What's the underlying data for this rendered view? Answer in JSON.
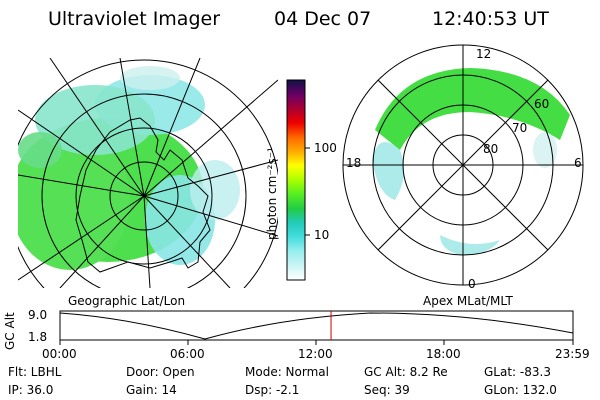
{
  "header": {
    "title": "Ultraviolet Imager",
    "date": "04 Dec 07",
    "time": "12:40:53 UT"
  },
  "colors": {
    "aurora_green": "#44dd44",
    "aurora_light": "#88eebb",
    "aurora_cyan": "#88e6e6",
    "timeline_marker": "#cc0000",
    "panel_border": "#000000"
  },
  "colorbar": {
    "unit_label": "photon cm⁻²s⁻¹",
    "ticks": [
      "100",
      "10"
    ],
    "stops": [
      "#111144",
      "#660066",
      "#aa0033",
      "#ee0000",
      "#ff6600",
      "#ffaa00",
      "#ffff00",
      "#aaff00",
      "#55ee22",
      "#22cc44",
      "#22ccbb",
      "#44dddd",
      "#99eeee",
      "#ccf4f4",
      "#ffffff"
    ]
  },
  "left_panel": {
    "caption": "Geographic Lat/Lon"
  },
  "right_panel": {
    "caption": "Apex MLat/MLT",
    "mlt_labels": {
      "top": "12",
      "bottom": "0",
      "left": "18",
      "right": "6"
    },
    "lat_labels": [
      "60",
      "70",
      "80"
    ]
  },
  "timeline": {
    "axis_label": "GC Alt",
    "y_max": "9.0",
    "y_min": "1.8",
    "x_ticks": [
      "00:00",
      "06:00",
      "12:00",
      "18:00",
      "23:59"
    ],
    "current_time_hours": 12.68
  },
  "info": {
    "flt": "Flt: LBHL",
    "ip": "IP: 36.0",
    "door": "Door: Open",
    "gain": "Gain: 14",
    "mode": "Mode: Normal",
    "dsp": "Dsp:  -2.1",
    "gc_alt": "GC Alt: 8.2 Re",
    "seq": "Seq: 39",
    "glat": "GLat: -83.3",
    "glon": "GLon: 132.0"
  }
}
